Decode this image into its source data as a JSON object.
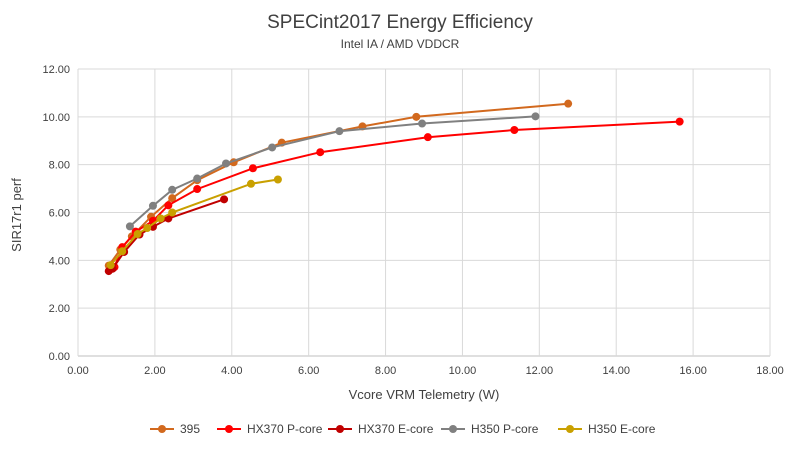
{
  "chart_data": {
    "type": "line",
    "title": "SPECint2017 Energy Efficiency",
    "subtitle": "Intel IA / AMD VDDCR",
    "xlabel": "Vcore VRM Telemetry (W)",
    "ylabel": "SIR17r1 perf",
    "xlim": [
      0,
      18
    ],
    "ylim": [
      0,
      12
    ],
    "xticks": [
      "0.00",
      "2.00",
      "4.00",
      "6.00",
      "8.00",
      "10.00",
      "12.00",
      "14.00",
      "16.00",
      "18.00"
    ],
    "yticks": [
      "0.00",
      "2.00",
      "4.00",
      "6.00",
      "8.00",
      "10.00",
      "12.00"
    ],
    "grid": true,
    "legend_position": "bottom",
    "series": [
      {
        "name": "395",
        "color": "#d2691e",
        "points": [
          [
            0.8,
            3.78
          ],
          [
            1.1,
            4.45
          ],
          [
            1.4,
            5.0
          ],
          [
            1.9,
            5.82
          ],
          [
            2.45,
            6.6
          ],
          [
            3.1,
            7.35
          ],
          [
            4.05,
            8.1
          ],
          [
            5.3,
            8.92
          ],
          [
            7.4,
            9.6
          ],
          [
            8.8,
            10.0
          ],
          [
            12.75,
            10.55
          ]
        ]
      },
      {
        "name": "HX370 P-core",
        "color": "#ff0000",
        "points": [
          [
            0.95,
            3.72
          ],
          [
            1.15,
            4.55
          ],
          [
            1.5,
            5.2
          ],
          [
            1.95,
            5.65
          ],
          [
            2.35,
            6.3
          ],
          [
            3.1,
            6.98
          ],
          [
            4.55,
            7.85
          ],
          [
            6.3,
            8.52
          ],
          [
            9.1,
            9.15
          ],
          [
            11.35,
            9.45
          ],
          [
            15.65,
            9.8
          ]
        ]
      },
      {
        "name": "HX370 E-core",
        "color": "#c00000",
        "points": [
          [
            0.8,
            3.55
          ],
          [
            0.9,
            3.65
          ],
          [
            1.2,
            4.35
          ],
          [
            1.6,
            5.08
          ],
          [
            1.95,
            5.4
          ],
          [
            2.35,
            5.75
          ],
          [
            3.8,
            6.55
          ]
        ]
      },
      {
        "name": "H350 P-core",
        "color": "#808080",
        "points": [
          [
            1.35,
            5.42
          ],
          [
            1.95,
            6.28
          ],
          [
            2.45,
            6.95
          ],
          [
            3.1,
            7.42
          ],
          [
            3.85,
            8.05
          ],
          [
            5.05,
            8.72
          ],
          [
            6.8,
            9.4
          ],
          [
            8.95,
            9.72
          ],
          [
            11.9,
            10.02
          ]
        ]
      },
      {
        "name": "H350 E-core",
        "color": "#c9a000",
        "points": [
          [
            0.85,
            3.8
          ],
          [
            1.15,
            4.38
          ],
          [
            1.55,
            5.1
          ],
          [
            1.8,
            5.35
          ],
          [
            2.15,
            5.75
          ],
          [
            2.45,
            6.0
          ],
          [
            4.5,
            7.2
          ],
          [
            5.2,
            7.38
          ]
        ]
      }
    ]
  }
}
